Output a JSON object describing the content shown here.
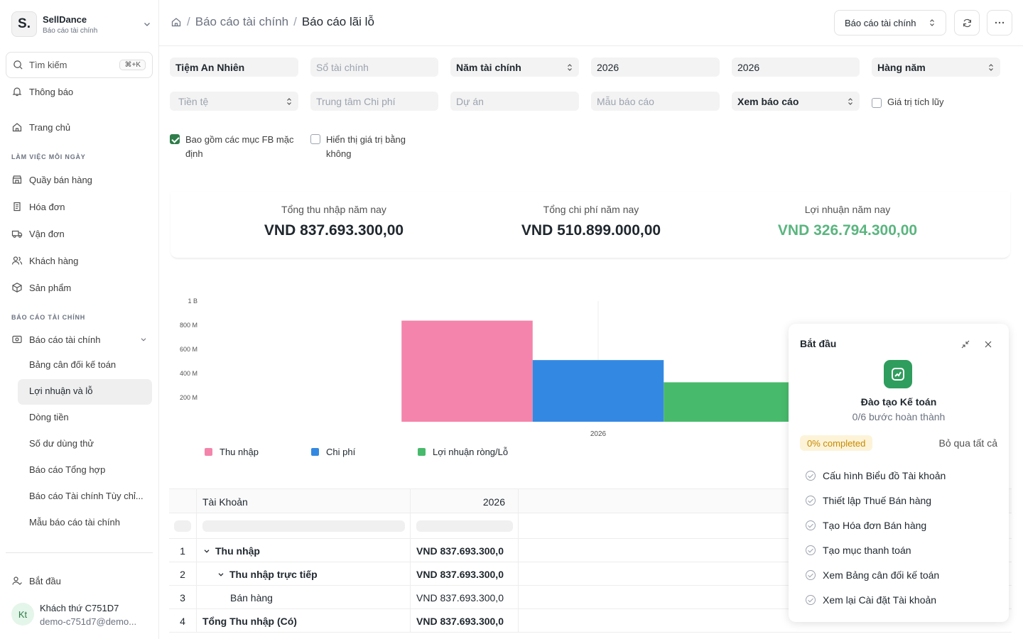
{
  "sidebar": {
    "brand_name": "SellDance",
    "brand_sub": "Báo cáo tài chính",
    "brand_initial": "S.",
    "search_label": "Tìm kiếm",
    "search_shortcut": "⌘+K",
    "notifications": "Thông báo",
    "home": "Trang chủ",
    "section_daily": "LÀM VIỆC MỖI NGÀY",
    "daily_items": [
      "Quầy bán hàng",
      "Hóa đơn",
      "Vận đơn",
      "Khách hàng",
      "Sản phẩm"
    ],
    "section_reports": "BÁO CÁO TÀI CHÍNH",
    "report_group": "Báo cáo tài chính",
    "report_items": [
      "Bảng cân đối kế toán",
      "Lợi nhuận và lỗ",
      "Dòng tiền",
      "Số dư dùng thử",
      "Báo cáo Tổng hợp",
      "Báo cáo Tài chính Tùy chỉ...",
      "Mẫu báo cáo tài chính"
    ],
    "start": "Bắt đầu",
    "user_initials": "Kt",
    "user_name": "Khách thứ C751D7",
    "user_email": "demo-c751d7@demo..."
  },
  "header": {
    "crumb_parent": "Báo cáo tài chính",
    "crumb_current": "Báo cáo lãi lỗ",
    "report_select": "Báo cáo tài chính"
  },
  "filters": {
    "company": "Tiệm An Nhiên",
    "ledger_placeholder": "Sổ tài chính",
    "period_type": "Năm tài chính",
    "from_year": "2026",
    "to_year": "2026",
    "periodicity": "Hàng năm",
    "currency_placeholder": "Tiền tệ",
    "cost_center_placeholder": "Trung tâm Chi phí",
    "project_placeholder": "Dự án",
    "template_placeholder": "Mẫu báo cáo",
    "view": "Xem báo cáo",
    "accumulated": "Giá trị tích lũy",
    "include_default_fb": "Bao gồm các mục FB mặc định",
    "show_zero": "Hiển thị giá trị bằng không"
  },
  "summary": {
    "income_label": "Tổng thu nhập năm nay",
    "income_value": "VND 837.693.300,00",
    "expense_label": "Tổng chi phí năm nay",
    "expense_value": "VND 510.899.000,00",
    "profit_label": "Lợi nhuận năm nay",
    "profit_value": "VND 326.794.300,00"
  },
  "chart_data": {
    "type": "bar",
    "categories": [
      "2026"
    ],
    "series": [
      {
        "name": "Thu nhập",
        "values": [
          837693300
        ],
        "color": "#f484ab"
      },
      {
        "name": "Chi phí",
        "values": [
          510899000
        ],
        "color": "#3389e2"
      },
      {
        "name": "Lợi nhuận ròng/Lỗ",
        "values": [
          326794300
        ],
        "color": "#48ba6c"
      }
    ],
    "y_ticks": [
      "200 M",
      "400 M",
      "600 M",
      "800 M",
      "1 B"
    ],
    "ylim": [
      0,
      1000000000
    ],
    "legend": "bottom-left"
  },
  "table": {
    "col_account": "Tài Khoản",
    "col_year": "2026",
    "rows": [
      {
        "idx": "1",
        "account": "Thu nhập",
        "value": "VND 837.693.300,0"
      },
      {
        "idx": "2",
        "account": "Thu nhập trực tiếp",
        "value": "VND 837.693.300,0"
      },
      {
        "idx": "3",
        "account": "Bán hàng",
        "value": "VND 837.693.300,0"
      },
      {
        "idx": "4",
        "account": "Tổng Thu nhập (Có)",
        "value": "VND 837.693.300,0"
      }
    ]
  },
  "panel": {
    "title": "Bắt đầu",
    "name": "Đào tạo Kế toán",
    "progress": "0/6 bước hoàn thành",
    "badge": "0% completed",
    "skip": "Bỏ qua tất cả",
    "steps": [
      "Cấu hình Biểu đồ Tài khoản",
      "Thiết lập Thuế Bán hàng",
      "Tạo Hóa đơn Bán hàng",
      "Tạo mục thanh toán",
      "Xem Bảng cân đối kế toán",
      "Xem lại Cài đặt Tài khoản"
    ]
  }
}
